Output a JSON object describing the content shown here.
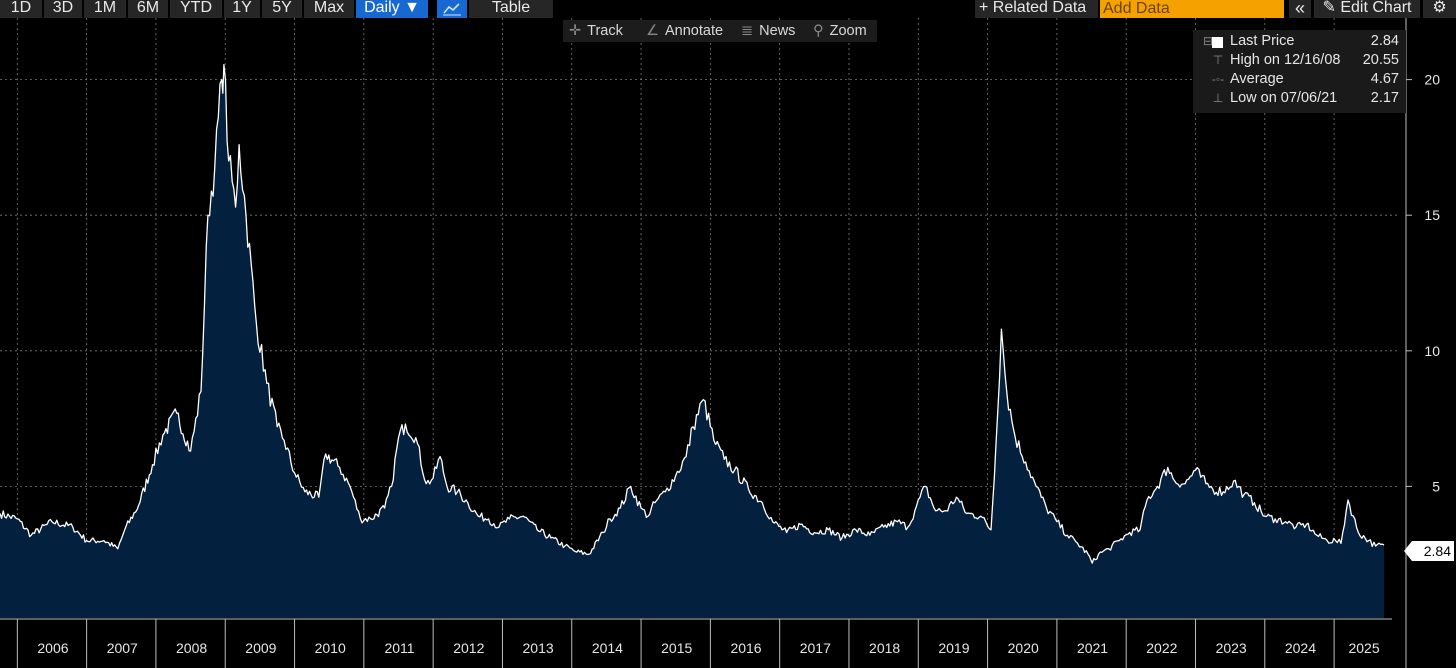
{
  "toolbar": {
    "ranges": [
      "1D",
      "3D",
      "1M",
      "6M",
      "YTD",
      "1Y",
      "5Y",
      "Max"
    ],
    "frequency": "Daily ▼",
    "table_label": "Table",
    "related_data": "+ Related Data",
    "add_data_placeholder": "Add Data",
    "collapse_glyph": "«",
    "edit_chart": "✎ Edit Chart",
    "settings_glyph": "⚙"
  },
  "subtools": {
    "track": "Track",
    "annotate": "Annotate",
    "news": "News",
    "zoom": "Zoom"
  },
  "legend": {
    "last_price_label": "Last Price",
    "last_price_value": "2.84",
    "high_label": "High on 12/16/08",
    "high_value": "20.55",
    "average_label": "Average",
    "average_value": "4.67",
    "low_label": "Low on 07/06/21",
    "low_value": "2.17"
  },
  "last_tag": "2.84",
  "colors": {
    "area_fill": "#04203f",
    "line": "#ffffff",
    "active_button": "#1769d1",
    "add_data": "#f5a100"
  },
  "chart_data": {
    "type": "area",
    "title": "",
    "xlabel": "",
    "ylabel": "",
    "x_range": [
      2005.75,
      2025.72
    ],
    "ylim": [
      1,
      21.6
    ],
    "y_ticks": [
      "5",
      "10",
      "15",
      "20"
    ],
    "x_tick_labels": [
      "2006",
      "2007",
      "2008",
      "2009",
      "2010",
      "2011",
      "2012",
      "2013",
      "2014",
      "2015",
      "2016",
      "2017",
      "2018",
      "2019",
      "2020",
      "2021",
      "2022",
      "2023",
      "2024",
      "2025"
    ],
    "series": [
      {
        "name": "Last Price",
        "x": [
          2005.75,
          2006.0,
          2006.2,
          2006.5,
          2006.8,
          2007.0,
          2007.25,
          2007.45,
          2007.55,
          2007.75,
          2007.95,
          2008.1,
          2008.3,
          2008.5,
          2008.65,
          2008.75,
          2008.85,
          2008.95,
          2008.98,
          2009.05,
          2009.15,
          2009.2,
          2009.3,
          2009.45,
          2009.6,
          2009.75,
          2009.85,
          2010.0,
          2010.15,
          2010.35,
          2010.45,
          2010.65,
          2010.8,
          2010.95,
          2011.1,
          2011.3,
          2011.4,
          2011.5,
          2011.6,
          2011.75,
          2011.9,
          2012.0,
          2012.1,
          2012.2,
          2012.35,
          2012.5,
          2012.65,
          2012.8,
          2012.95,
          2013.1,
          2013.3,
          2013.5,
          2013.7,
          2013.9,
          2014.05,
          2014.25,
          2014.45,
          2014.55,
          2014.7,
          2014.85,
          2015.0,
          2015.1,
          2015.2,
          2015.35,
          2015.5,
          2015.65,
          2015.75,
          2015.9,
          2016.05,
          2016.2,
          2016.35,
          2016.55,
          2016.75,
          2016.9,
          2017.1,
          2017.3,
          2017.5,
          2017.7,
          2017.9,
          2018.1,
          2018.3,
          2018.5,
          2018.7,
          2018.85,
          2018.95,
          2019.1,
          2019.25,
          2019.4,
          2019.55,
          2019.7,
          2019.9,
          2020.05,
          2020.12,
          2020.2,
          2020.28,
          2020.4,
          2020.55,
          2020.7,
          2020.85,
          2021.0,
          2021.15,
          2021.3,
          2021.45,
          2021.51,
          2021.6,
          2021.75,
          2021.9,
          2022.05,
          2022.2,
          2022.3,
          2022.45,
          2022.6,
          2022.7,
          2022.85,
          2023.0,
          2023.15,
          2023.25,
          2023.4,
          2023.55,
          2023.7,
          2023.85,
          2024.0,
          2024.15,
          2024.3,
          2024.45,
          2024.6,
          2024.75,
          2024.9,
          2025.02,
          2025.1,
          2025.2,
          2025.35,
          2025.5,
          2025.6,
          2025.72
        ],
        "y": [
          4.0,
          3.8,
          3.2,
          3.7,
          3.5,
          3.0,
          3.0,
          2.7,
          3.4,
          4.3,
          5.8,
          6.9,
          7.7,
          6.3,
          8.5,
          15.0,
          16.8,
          20.0,
          20.55,
          17.0,
          15.3,
          17.6,
          15.0,
          11.0,
          8.8,
          7.2,
          6.7,
          5.5,
          4.8,
          4.6,
          6.2,
          5.7,
          5.0,
          3.8,
          3.8,
          4.2,
          5.0,
          6.8,
          7.3,
          6.8,
          5.1,
          5.3,
          6.1,
          5.0,
          4.8,
          4.4,
          3.9,
          3.8,
          3.5,
          3.8,
          3.9,
          3.4,
          3.1,
          2.8,
          2.6,
          2.5,
          3.3,
          3.8,
          4.2,
          5.0,
          4.2,
          3.9,
          4.4,
          4.8,
          5.4,
          6.1,
          7.2,
          8.2,
          6.7,
          6.0,
          5.6,
          4.9,
          4.4,
          3.7,
          3.3,
          3.6,
          3.3,
          3.4,
          3.1,
          3.4,
          3.2,
          3.5,
          3.7,
          3.5,
          4.1,
          5.0,
          4.1,
          4.1,
          4.6,
          4.0,
          3.9,
          3.4,
          6.5,
          10.8,
          8.4,
          6.8,
          5.9,
          5.0,
          4.2,
          3.7,
          3.2,
          2.9,
          2.5,
          2.17,
          2.5,
          2.7,
          3.0,
          3.3,
          3.4,
          4.5,
          5.0,
          5.7,
          5.2,
          5.1,
          5.6,
          5.1,
          4.9,
          4.8,
          5.2,
          4.7,
          4.4,
          3.9,
          3.8,
          3.7,
          3.5,
          3.6,
          3.2,
          3.0,
          3.0,
          2.9,
          4.5,
          3.3,
          3.0,
          2.8,
          2.84
        ]
      }
    ]
  }
}
